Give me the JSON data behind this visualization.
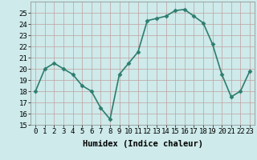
{
  "x": [
    0,
    1,
    2,
    3,
    4,
    5,
    6,
    7,
    8,
    9,
    10,
    11,
    12,
    13,
    14,
    15,
    16,
    17,
    18,
    19,
    20,
    21,
    22,
    23
  ],
  "y": [
    18,
    20,
    20.5,
    20,
    19.5,
    18.5,
    18,
    16.5,
    15.5,
    19.5,
    20.5,
    21.5,
    24.3,
    24.5,
    24.7,
    25.2,
    25.3,
    24.7,
    24.1,
    22.2,
    19.5,
    17.5,
    18,
    19.8
  ],
  "line_color": "#2e7d6e",
  "marker": "D",
  "marker_size": 2.5,
  "bg_color": "#ceeaea",
  "grid_color": "#c0a0a0",
  "xlabel": "Humidex (Indice chaleur)",
  "ylim": [
    15,
    26
  ],
  "xlim": [
    -0.5,
    23.5
  ],
  "yticks": [
    15,
    16,
    17,
    18,
    19,
    20,
    21,
    22,
    23,
    24,
    25
  ],
  "xticks": [
    0,
    1,
    2,
    3,
    4,
    5,
    6,
    7,
    8,
    9,
    10,
    11,
    12,
    13,
    14,
    15,
    16,
    17,
    18,
    19,
    20,
    21,
    22,
    23
  ],
  "xlabel_fontsize": 7.5,
  "tick_fontsize": 6.5,
  "line_width": 1.2
}
